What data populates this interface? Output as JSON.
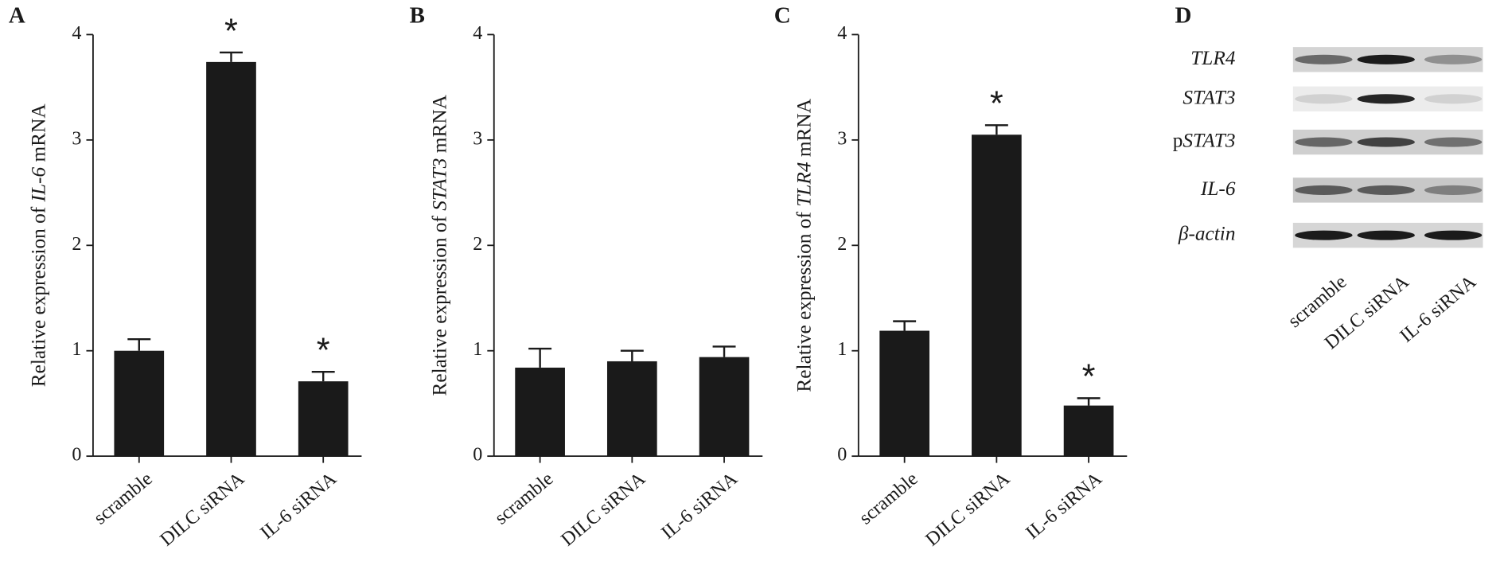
{
  "chart_data": [
    {
      "type": "bar",
      "label": "A",
      "y_label": {
        "prefix": "Relative expression of ",
        "gene": "IL-6",
        "suffix": " mRNA"
      },
      "categories": [
        "scramble",
        "DILC siRNA",
        "IL-6 siRNA"
      ],
      "values": [
        1.0,
        3.74,
        0.71
      ],
      "errors": [
        0.11,
        0.09,
        0.09
      ],
      "annotations": [
        null,
        "*",
        "*"
      ],
      "color": "#1a1a1a",
      "ylim": [
        0,
        4
      ],
      "yticks": [
        0,
        1,
        2,
        3,
        4
      ]
    },
    {
      "type": "bar",
      "label": "B",
      "y_label": {
        "prefix": "Relative expression of ",
        "gene": "STAT3",
        "suffix": " mRNA"
      },
      "categories": [
        "scramble",
        "DILC siRNA",
        "IL-6 siRNA"
      ],
      "values": [
        0.84,
        0.9,
        0.94
      ],
      "errors": [
        0.18,
        0.1,
        0.1
      ],
      "annotations": [
        null,
        null,
        null
      ],
      "color": "#1a1a1a",
      "ylim": [
        0,
        4
      ],
      "yticks": [
        0,
        1,
        2,
        3,
        4
      ]
    },
    {
      "type": "bar",
      "label": "C",
      "y_label": {
        "prefix": "Relative expression of ",
        "gene": "TLR4",
        "suffix": " mRNA"
      },
      "categories": [
        "scramble",
        "DILC siRNA",
        "IL-6 siRNA"
      ],
      "values": [
        1.19,
        3.05,
        0.48
      ],
      "errors": [
        0.09,
        0.09,
        0.07
      ],
      "annotations": [
        null,
        "*",
        "*"
      ],
      "color": "#1a1a1a",
      "ylim": [
        0,
        4
      ],
      "yticks": [
        0,
        1,
        2,
        3,
        4
      ]
    }
  ],
  "blot": {
    "label": "D",
    "rows": [
      {
        "name": "TLR4"
      },
      {
        "name": "STAT3"
      },
      {
        "prefix": "p",
        "name": "STAT3"
      },
      {
        "name": "IL-6"
      },
      {
        "name": "β-actin"
      }
    ],
    "lanes": [
      "scramble",
      "DILC siRNA",
      "IL-6 siRNA"
    ]
  }
}
